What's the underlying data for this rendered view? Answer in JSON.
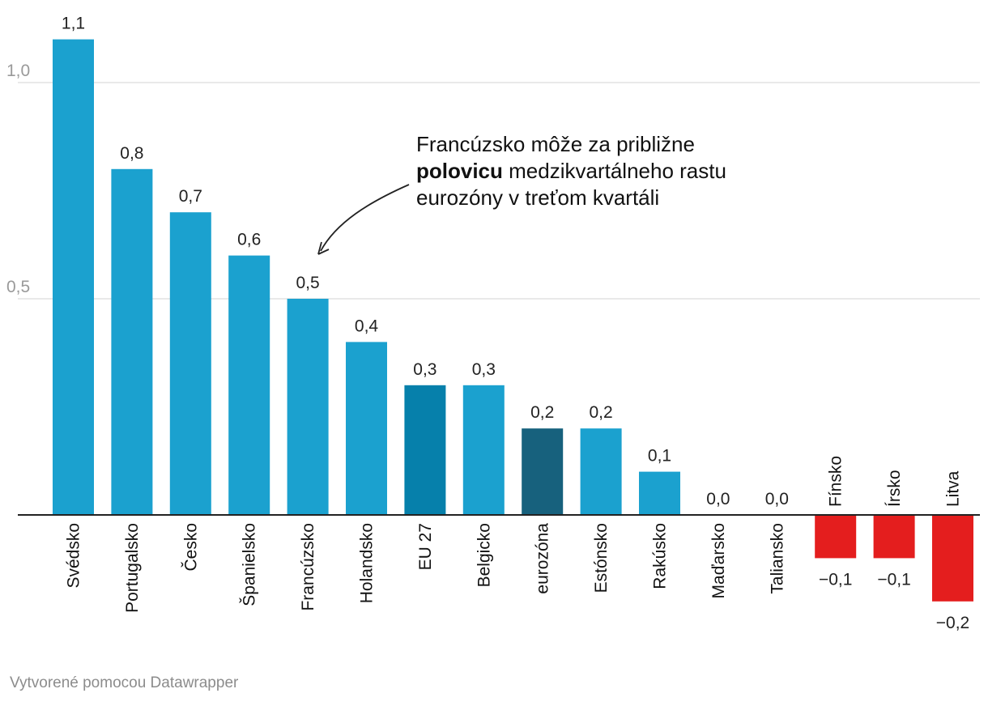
{
  "chart_data": {
    "type": "bar",
    "categories": [
      "Svédsko",
      "Portugalsko",
      "Česko",
      "Španielsko",
      "Francúzsko",
      "Holandsko",
      "EU 27",
      "Belgicko",
      "eurozóna",
      "Estónsko",
      "Rakúsko",
      "Maďarsko",
      "Taliansko",
      "Fínsko",
      "Írsko",
      "Litva"
    ],
    "values": [
      1.1,
      0.8,
      0.7,
      0.6,
      0.5,
      0.4,
      0.3,
      0.3,
      0.2,
      0.2,
      0.1,
      0.0,
      0.0,
      -0.1,
      -0.1,
      -0.2
    ],
    "value_labels": [
      "1,1",
      "0,8",
      "0,7",
      "0,6",
      "0,5",
      "0,4",
      "0,3",
      "0,3",
      "0,2",
      "0,2",
      "0,1",
      "0,0",
      "0,0",
      "−0,1",
      "−0,1",
      "−0,2"
    ],
    "bar_colors": [
      "#1ba1cf",
      "#1ba1cf",
      "#1ba1cf",
      "#1ba1cf",
      "#1ba1cf",
      "#1ba1cf",
      "#0680ab",
      "#1ba1cf",
      "#17617d",
      "#1ba1cf",
      "#1ba1cf",
      "#1ba1cf",
      "#1ba1cf",
      "#e41e1e",
      "#e41e1e",
      "#e41e1e"
    ],
    "yticks": [
      0.5,
      1.0
    ],
    "ytick_labels": [
      "0,5",
      "1,0"
    ],
    "ylim": [
      -0.2,
      1.1
    ],
    "grid": true,
    "annotation": {
      "before": "Francúzsko môže za približne ",
      "bold": "polovicu",
      "after": " medzikvartálneho rastu eurozóny v treťom kvartáli"
    }
  },
  "credit": "Vytvorené pomocou Datawrapper"
}
